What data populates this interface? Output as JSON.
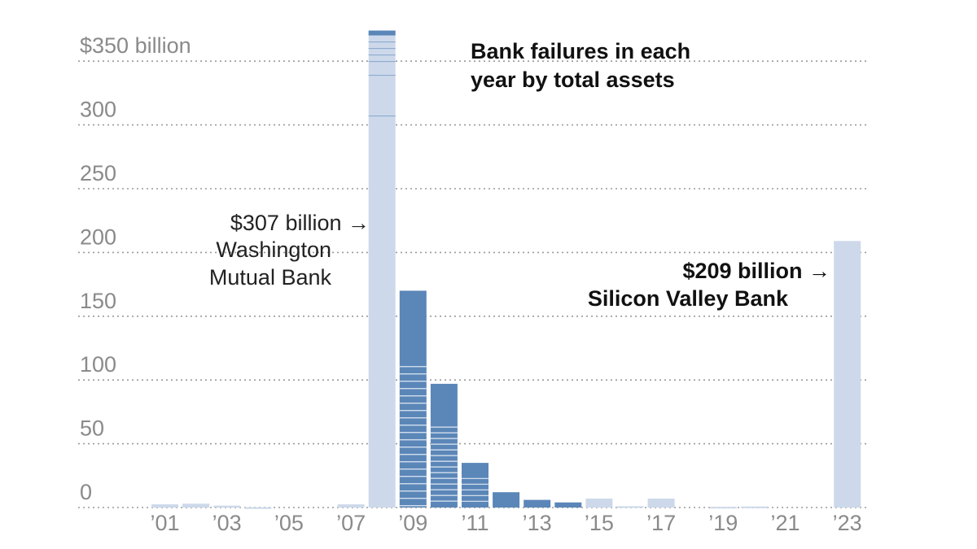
{
  "chart_data": {
    "type": "bar",
    "title": "Bank failures in each year by total assets",
    "title_lines": [
      "Bank failures in each",
      "year by total assets"
    ],
    "unit_label": "$350 billion",
    "y_tick_values": [
      0,
      50,
      100,
      150,
      200,
      250,
      300,
      350
    ],
    "y_tick_labels": [
      "0",
      "50",
      "100",
      "150",
      "200",
      "250",
      "300",
      "$350 billion"
    ],
    "ylim": [
      0,
      375
    ],
    "grid": true,
    "categories": [
      "2001",
      "2002",
      "2003",
      "2004",
      "2005",
      "2006",
      "2007",
      "2008",
      "2009",
      "2010",
      "2011",
      "2012",
      "2013",
      "2014",
      "2015",
      "2016",
      "2017",
      "2018",
      "2019",
      "2020",
      "2021",
      "2022",
      "2023"
    ],
    "x_tick_labels": [
      "’01",
      "",
      "’03",
      "",
      "’05",
      "",
      "’07",
      "",
      "’09",
      "",
      "’11",
      "",
      "’13",
      "",
      "’15",
      "",
      "’17",
      "",
      "’19",
      "",
      "’21",
      "",
      "’23"
    ],
    "values": [
      2.5,
      3,
      1.5,
      0.2,
      0,
      0,
      2.5,
      374,
      170,
      97,
      35,
      12,
      6,
      4,
      7,
      1,
      7,
      0,
      0.5,
      0.8,
      0,
      0,
      209
    ],
    "annotations": [
      {
        "year": "2008",
        "lines": [
          "$307 billion →",
          "Washington",
          "Mutual Bank"
        ],
        "value": 307,
        "bold": false
      },
      {
        "year": "2023",
        "lines": [
          "$209 billion →",
          "Silicon Valley Bank"
        ],
        "value": 209,
        "bold": true
      }
    ],
    "colors": {
      "bar_light": "#cdd9ea",
      "bar_dark": "#5b86b8",
      "grid": "#9a9a9a",
      "tick_text": "#8a8a8a",
      "title_text": "#111111"
    }
  }
}
